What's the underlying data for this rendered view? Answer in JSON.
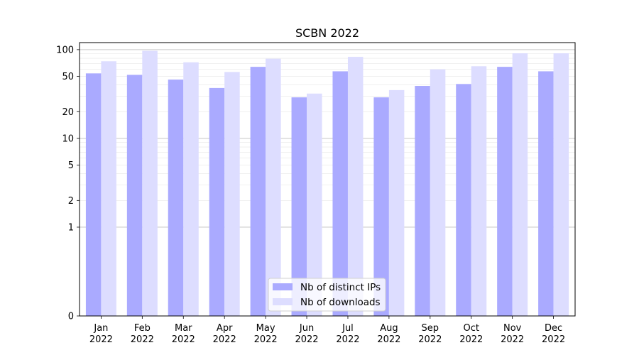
{
  "chart_data": {
    "type": "bar",
    "title": "SCBN 2022",
    "xlabel": "",
    "ylabel": "",
    "yscale": "symlog",
    "ylim": [
      0,
      120
    ],
    "yticks": [
      "0",
      "1",
      "2",
      "5",
      "10",
      "20",
      "50",
      "100"
    ],
    "categories": [
      [
        "Jan",
        "2022"
      ],
      [
        "Feb",
        "2022"
      ],
      [
        "Mar",
        "2022"
      ],
      [
        "Apr",
        "2022"
      ],
      [
        "May",
        "2022"
      ],
      [
        "Jun",
        "2022"
      ],
      [
        "Jul",
        "2022"
      ],
      [
        "Aug",
        "2022"
      ],
      [
        "Sep",
        "2022"
      ],
      [
        "Oct",
        "2022"
      ],
      [
        "Nov",
        "2022"
      ],
      [
        "Dec",
        "2022"
      ]
    ],
    "series": [
      {
        "name": "Nb of distinct IPs",
        "color": "#aaaaff",
        "values": [
          54,
          52,
          46,
          37,
          64,
          29,
          57,
          29,
          39,
          41,
          64,
          57
        ]
      },
      {
        "name": "Nb of downloads",
        "color": "#ddddff",
        "values": [
          74,
          97,
          72,
          56,
          79,
          32,
          83,
          35,
          60,
          65,
          91,
          91
        ]
      }
    ],
    "grid": true,
    "legend_position": "bottom-center"
  }
}
